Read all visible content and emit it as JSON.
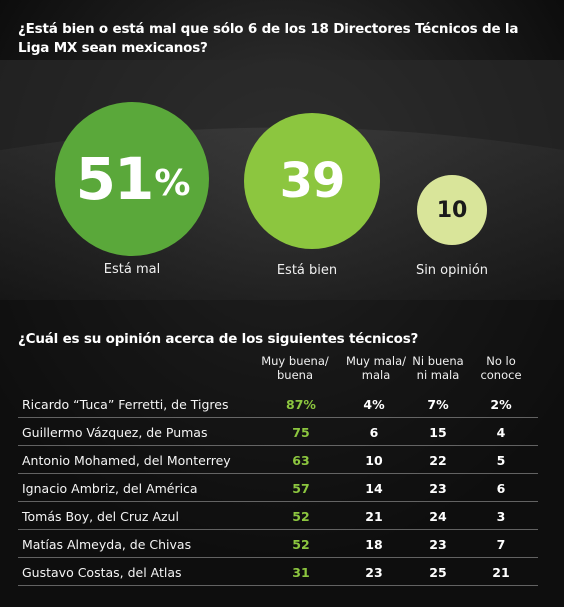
{
  "poll": {
    "question": "¿Está bien o está mal que sólo 6 de los 18 Directores Técnicos de la Liga MX sean mexicanos?",
    "results": [
      {
        "value": "51",
        "suffix": "%",
        "label": "Está mal"
      },
      {
        "value": "39",
        "label": "Está bien"
      },
      {
        "value": "10",
        "label": "Sin opinión"
      }
    ]
  },
  "table": {
    "question": "¿Cuál es su opinión acerca de los siguientes técnicos?",
    "columns": [
      "Muy buena/ buena",
      "Muy mala/ mala",
      "Ni buena ni mala",
      "No lo conoce"
    ]
  },
  "colors": {
    "accent_dark": "#5aa83a",
    "accent": "#8cc63f",
    "accent_light": "#d9e59a",
    "background": "#121212"
  },
  "chart_data": [
    {
      "type": "bubble",
      "title": "¿Está bien o está mal que sólo 6 de los 18 Directores Técnicos de la Liga MX sean mexicanos?",
      "categories": [
        "Está mal",
        "Está bien",
        "Sin opinión"
      ],
      "values": [
        51,
        39,
        10
      ],
      "unit": "%"
    },
    {
      "type": "table",
      "title": "¿Cuál es su opinión acerca de los siguientes técnicos?",
      "columns": [
        "Muy buena/ buena",
        "Muy mala/ mala",
        "Ni buena ni mala",
        "No lo conoce"
      ],
      "rows": [
        {
          "name": "Ricardo “Tuca” Ferretti, de Tigres",
          "values": [
            "87%",
            "4%",
            "7%",
            "2%"
          ]
        },
        {
          "name": "Guillermo Vázquez, de Pumas",
          "values": [
            "75",
            "6",
            "15",
            "4"
          ]
        },
        {
          "name": "Antonio Mohamed, del Monterrey",
          "values": [
            "63",
            "10",
            "22",
            "5"
          ]
        },
        {
          "name": "Ignacio Ambriz, del América",
          "values": [
            "57",
            "14",
            "23",
            "6"
          ]
        },
        {
          "name": "Tomás Boy, del Cruz Azul",
          "values": [
            "52",
            "21",
            "24",
            "3"
          ]
        },
        {
          "name": "Matías Almeyda, de Chivas",
          "values": [
            "52",
            "18",
            "23",
            "7"
          ]
        },
        {
          "name": "Gustavo Costas, del Atlas",
          "values": [
            "31",
            "23",
            "25",
            "21"
          ]
        }
      ]
    }
  ]
}
